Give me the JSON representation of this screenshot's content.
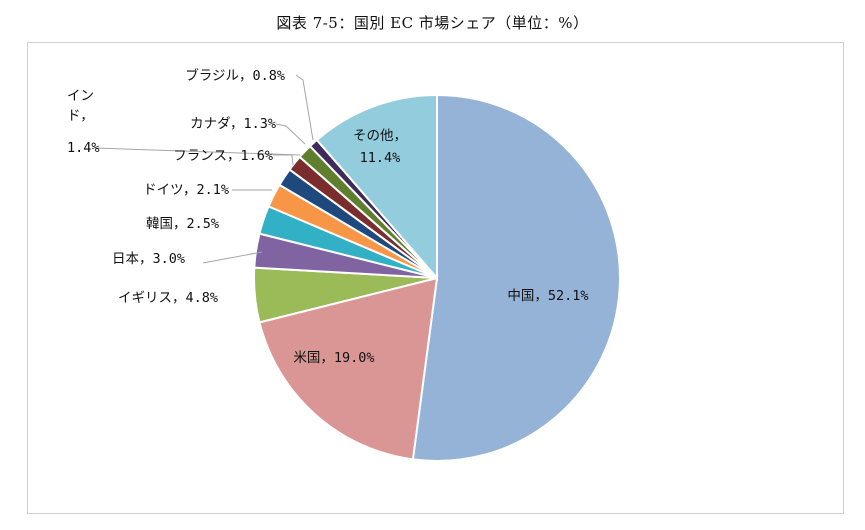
{
  "title": "図表 7-5：国別 EC 市場シェア（単位：%）",
  "chart_data": {
    "type": "pie",
    "title": "図表 7-5：国別 EC 市場シェア（単位：%）",
    "slices": [
      {
        "name": "中国",
        "value": 52.1,
        "label": "中国，52.1%",
        "color": "#95b3d7"
      },
      {
        "name": "米国",
        "value": 19.0,
        "label": "米国，19.0%",
        "color": "#d99694"
      },
      {
        "name": "イギリス",
        "value": 4.8,
        "label": "イギリス，4.8%",
        "color": "#9bbb59"
      },
      {
        "name": "日本",
        "value": 3.0,
        "label": "日本，3.0%",
        "color": "#8064a2"
      },
      {
        "name": "韓国",
        "value": 2.5,
        "label": "韓国，2.5%",
        "color": "#31b0c6"
      },
      {
        "name": "ドイツ",
        "value": 2.1,
        "label": "ドイツ，2.1%",
        "color": "#f79646"
      },
      {
        "name": "フランス",
        "value": 1.6,
        "label": "フランス，1.6%",
        "color": "#1f497d"
      },
      {
        "name": "インド",
        "value": 1.4,
        "label_lines": [
          "イン",
          "ド，",
          "1.4%"
        ],
        "color": "#7b2c2c"
      },
      {
        "name": "カナダ",
        "value": 1.3,
        "label": "カナダ，1.3%",
        "color": "#5f7f2e"
      },
      {
        "name": "ブラジル",
        "value": 0.8,
        "label": "ブラジル，0.8%",
        "color": "#3f2b5b"
      },
      {
        "name": "その他",
        "value": 11.4,
        "label_lines": [
          "その他，",
          "11.4%"
        ],
        "color": "#93cddd"
      }
    ],
    "legend": "none"
  }
}
